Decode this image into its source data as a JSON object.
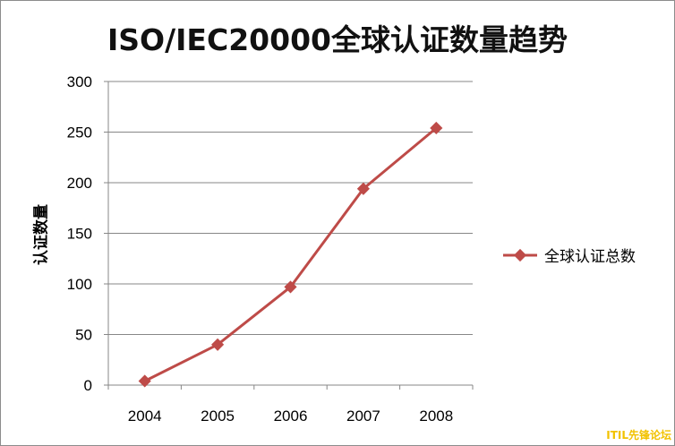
{
  "chart_data": {
    "type": "line",
    "title": "ISO/IEC20000全球认证数量趋势",
    "ylabel": "认证数量",
    "xlabel": "",
    "categories": [
      "2004",
      "2005",
      "2006",
      "2007",
      "2008"
    ],
    "series": [
      {
        "name": "全球认证总数",
        "values": [
          4,
          40,
          97,
          194,
          254
        ],
        "color": "#be4b48"
      }
    ],
    "ylim": [
      0,
      300
    ],
    "yticks": [
      0,
      50,
      100,
      150,
      200,
      250,
      300
    ],
    "grid": true,
    "legend_position": "right"
  },
  "watermark": "ITIL先锋论坛"
}
